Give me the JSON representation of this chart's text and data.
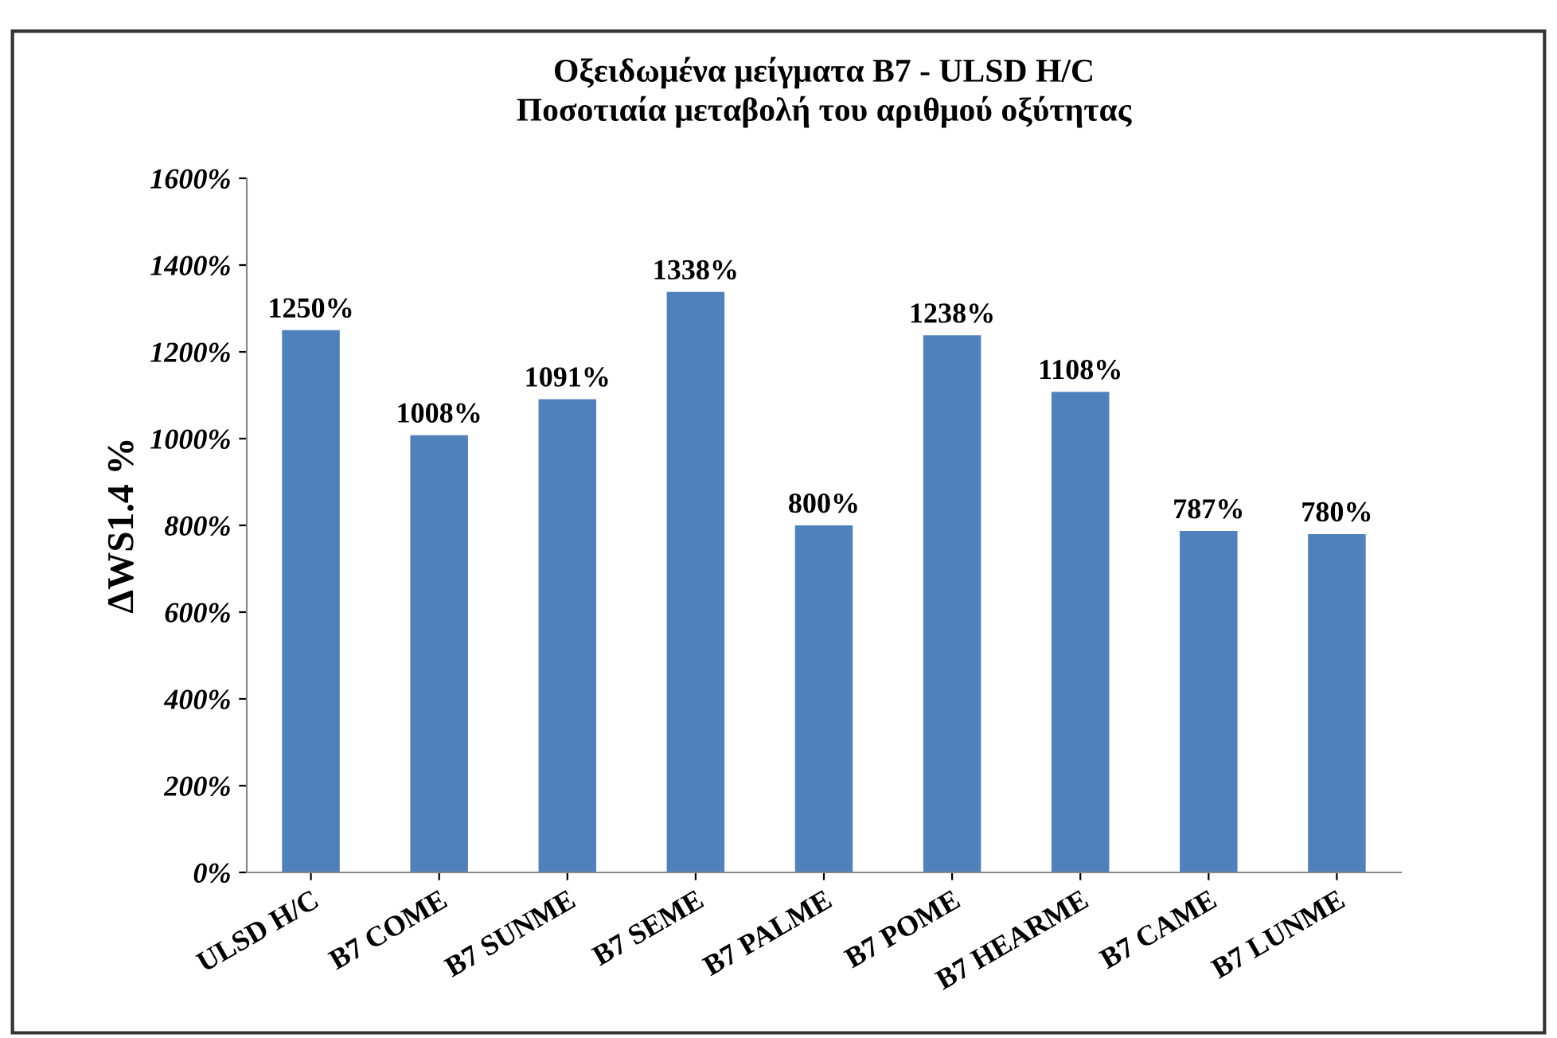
{
  "chart_data": {
    "type": "bar",
    "title": "Οξειδωμένα μείγματα B7 - ULSD H/C\nΠοσοτιαία μεταβολή του αριθμού οξύτητας",
    "ylabel": "ΔWS1.4 %",
    "categories": [
      "ULSD H/C",
      "B7 COME",
      "B7 SUNME",
      "B7 SEME",
      "B7 PALME",
      "B7 POME",
      "B7 HEARME",
      "B7 CAME",
      "B7 LUNME"
    ],
    "values": [
      1250,
      1008,
      1091,
      1338,
      800,
      1238,
      1108,
      787,
      780
    ],
    "value_labels": [
      "1250%",
      "1008%",
      "1091%",
      "1338%",
      "800%",
      "1238%",
      "1108%",
      "787%",
      "780%"
    ],
    "color": "#4f81bd",
    "ylim": [
      0,
      1600
    ],
    "yticks": [
      {
        "value": 0,
        "label": "0%"
      },
      {
        "value": 200,
        "label": "200%"
      },
      {
        "value": 400,
        "label": "400%"
      },
      {
        "value": 600,
        "label": "600%"
      },
      {
        "value": 800,
        "label": "800%"
      },
      {
        "value": 1000,
        "label": "1000%"
      },
      {
        "value": 1200,
        "label": "1200%"
      },
      {
        "value": 1400,
        "label": "1400%"
      },
      {
        "value": 1600,
        "label": "1600%"
      }
    ],
    "grid": false,
    "legend": false
  }
}
